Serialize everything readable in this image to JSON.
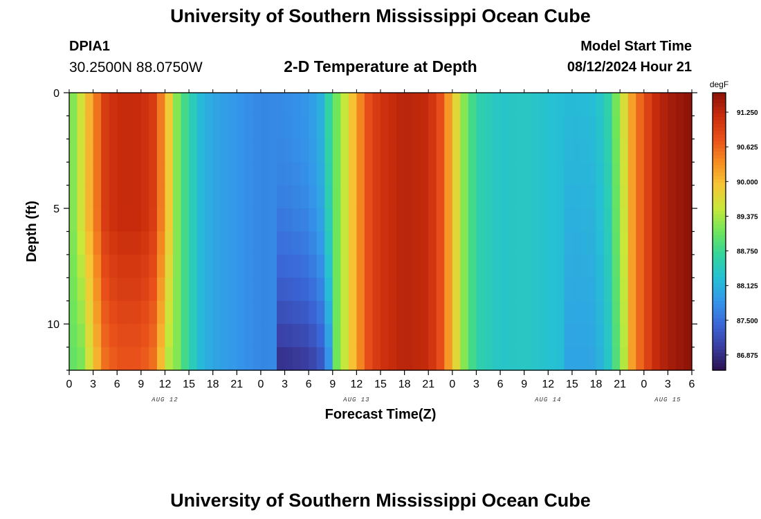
{
  "header": {
    "title": "University of Southern Mississippi Ocean Cube",
    "station_id": "DPIA1",
    "station_coords": "30.2500N  88.0750W",
    "plot_title": "2-D Temperature at Depth",
    "model_start_label": "Model Start Time",
    "model_start_value": "08/12/2024 Hour 21"
  },
  "footer": {
    "title": "University of Southern Mississippi Ocean Cube"
  },
  "colors": {
    "palette": [
      "#2a1050",
      "#3a3da0",
      "#3a67d8",
      "#3497ea",
      "#25c0d4",
      "#33d59c",
      "#6fe55a",
      "#c8e83a",
      "#f6c635",
      "#f58c22",
      "#e8501a",
      "#c82c0c",
      "#8c1208"
    ]
  },
  "chart_data": {
    "type": "heatmap",
    "title": "2-D Temperature at Depth",
    "xlabel": "Forecast Time(Z)",
    "ylabel": "Depth (ft)",
    "x_hours_range": [
      0,
      78
    ],
    "ylim": [
      0,
      12
    ],
    "y_reversed": true,
    "x_ticks": [
      {
        "h": 0,
        "label": "0"
      },
      {
        "h": 3,
        "label": "3"
      },
      {
        "h": 6,
        "label": "6"
      },
      {
        "h": 9,
        "label": "9"
      },
      {
        "h": 12,
        "label": "12"
      },
      {
        "h": 15,
        "label": "15"
      },
      {
        "h": 18,
        "label": "18"
      },
      {
        "h": 21,
        "label": "21"
      },
      {
        "h": 24,
        "label": "0"
      },
      {
        "h": 27,
        "label": "3"
      },
      {
        "h": 30,
        "label": "6"
      },
      {
        "h": 33,
        "label": "9"
      },
      {
        "h": 36,
        "label": "12"
      },
      {
        "h": 39,
        "label": "15"
      },
      {
        "h": 42,
        "label": "18"
      },
      {
        "h": 45,
        "label": "21"
      },
      {
        "h": 48,
        "label": "0"
      },
      {
        "h": 51,
        "label": "3"
      },
      {
        "h": 54,
        "label": "6"
      },
      {
        "h": 57,
        "label": "9"
      },
      {
        "h": 60,
        "label": "12"
      },
      {
        "h": 63,
        "label": "15"
      },
      {
        "h": 66,
        "label": "18"
      },
      {
        "h": 69,
        "label": "21"
      },
      {
        "h": 72,
        "label": "0"
      },
      {
        "h": 75,
        "label": "3"
      },
      {
        "h": 78,
        "label": "6"
      }
    ],
    "date_labels": [
      {
        "h": 12,
        "label": "AUG 12"
      },
      {
        "h": 36,
        "label": "AUG 13"
      },
      {
        "h": 60,
        "label": "AUG 14"
      },
      {
        "h": 75,
        "label": "AUG 15"
      }
    ],
    "y_ticks": [
      {
        "v": 0,
        "label": "0"
      },
      {
        "v": 5,
        "label": "5"
      },
      {
        "v": 10,
        "label": "10"
      }
    ],
    "colorbar": {
      "unit": "degF",
      "range": [
        86.6,
        91.6
      ],
      "labels": [
        "91.250",
        "90.625",
        "90.000",
        "89.375",
        "88.750",
        "88.125",
        "87.500",
        "86.875"
      ],
      "label_values": [
        91.25,
        90.625,
        90.0,
        89.375,
        88.75,
        88.125,
        87.5,
        86.875
      ]
    },
    "time_profile_keypoints": [
      [
        0,
        89.0
      ],
      [
        1.5,
        89.6
      ],
      [
        3,
        90.3
      ],
      [
        4.5,
        91.0
      ],
      [
        6,
        91.2
      ],
      [
        9,
        91.2
      ],
      [
        10.5,
        91.0
      ],
      [
        12,
        90.2
      ],
      [
        13.5,
        89.2
      ],
      [
        15,
        88.6
      ],
      [
        16.5,
        88.2
      ],
      [
        18,
        88.0
      ],
      [
        21,
        87.85
      ],
      [
        24,
        87.7
      ],
      [
        27,
        87.75
      ],
      [
        30,
        87.85
      ],
      [
        31.5,
        88.1
      ],
      [
        33,
        88.9
      ],
      [
        34.5,
        89.5
      ],
      [
        36,
        90.2
      ],
      [
        37.5,
        90.8
      ],
      [
        39,
        91.1
      ],
      [
        42,
        91.3
      ],
      [
        45,
        91.2
      ],
      [
        46.5,
        90.8
      ],
      [
        48,
        90.0
      ],
      [
        49.5,
        89.2
      ],
      [
        51,
        88.6
      ],
      [
        54,
        88.35
      ],
      [
        57,
        88.4
      ],
      [
        60,
        88.3
      ],
      [
        63,
        88.2
      ],
      [
        66,
        88.25
      ],
      [
        67.5,
        88.6
      ],
      [
        69,
        89.4
      ],
      [
        70.5,
        90.2
      ],
      [
        72,
        90.8
      ],
      [
        73.5,
        91.2
      ],
      [
        75,
        91.4
      ],
      [
        78,
        91.6
      ]
    ],
    "cells": {
      "x_step_hours": 1,
      "depth_step_ft": 1
    }
  }
}
